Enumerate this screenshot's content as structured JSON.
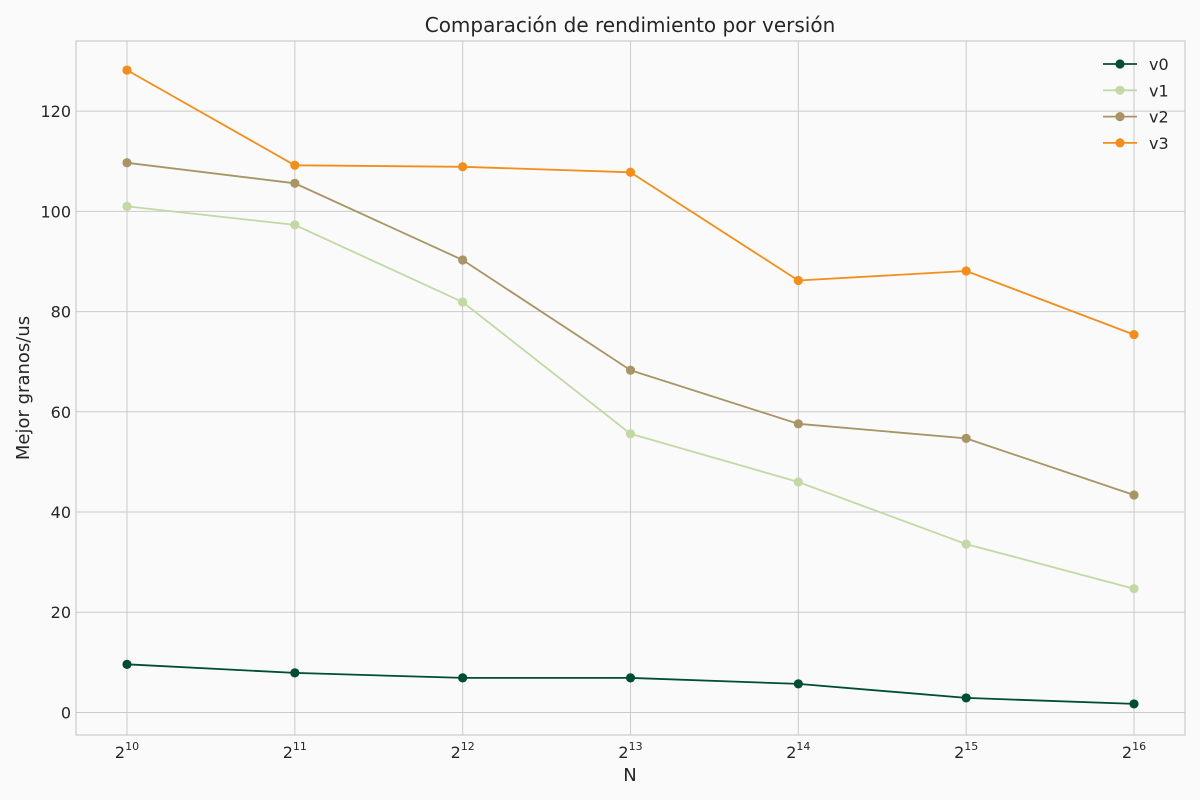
{
  "chart_data": {
    "type": "line",
    "title": "Comparación de rendimiento por versión",
    "xlabel": "N",
    "ylabel": "Mejor granos/us",
    "x_ticks": [
      {
        "base": "2",
        "exp": "10"
      },
      {
        "base": "2",
        "exp": "11"
      },
      {
        "base": "2",
        "exp": "12"
      },
      {
        "base": "2",
        "exp": "13"
      },
      {
        "base": "2",
        "exp": "14"
      },
      {
        "base": "2",
        "exp": "15"
      },
      {
        "base": "2",
        "exp": "16"
      }
    ],
    "y_ticks": [
      0,
      20,
      40,
      60,
      80,
      100,
      120
    ],
    "x": [
      1024,
      2048,
      4096,
      8192,
      16384,
      32768,
      65536
    ],
    "x_scale": "log2",
    "xlim": [
      1024,
      65536
    ],
    "ylim": [
      -4.5,
      134
    ],
    "grid": true,
    "legend_position": "top-right",
    "series": [
      {
        "name": "v0",
        "color": "#004d33",
        "values": [
          9.6,
          7.9,
          6.9,
          6.9,
          5.7,
          2.9,
          1.7
        ]
      },
      {
        "name": "v1",
        "color": "#c2d9a5",
        "values": [
          101.0,
          97.3,
          81.9,
          55.6,
          46.0,
          33.6,
          24.7
        ]
      },
      {
        "name": "v2",
        "color": "#a89464",
        "values": [
          109.7,
          105.6,
          90.3,
          68.3,
          57.6,
          54.7,
          43.4
        ]
      },
      {
        "name": "v3",
        "color": "#f28e1c",
        "values": [
          128.2,
          109.2,
          108.9,
          107.8,
          86.2,
          88.1,
          75.4
        ]
      }
    ]
  }
}
